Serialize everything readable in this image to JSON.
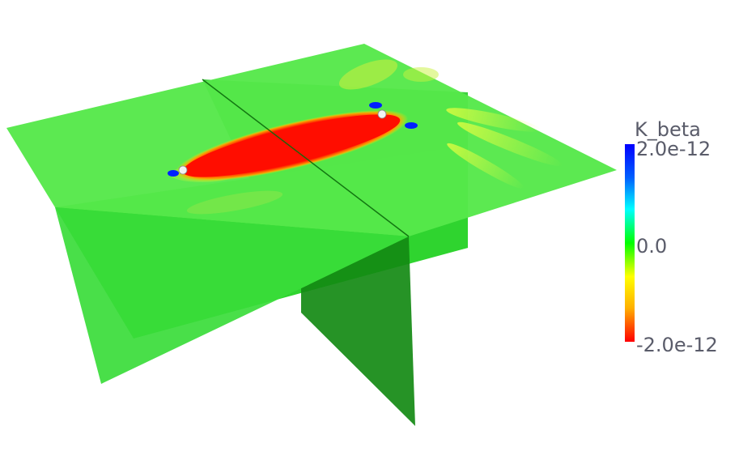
{
  "colorbar": {
    "title": "K_beta",
    "max_label": "2.0e-12",
    "mid_label": "0.0",
    "min_label": "-2.0e-12",
    "range": [
      -2e-12,
      2e-12
    ],
    "colors": [
      "#ff0000",
      "#ffb000",
      "#ffff00",
      "#00ff00",
      "#00ffff",
      "#0060ff",
      "#0000ff"
    ]
  },
  "scene": {
    "background": "#ffffff",
    "slice_color": "#33dd33",
    "anomaly_color": "#ff1100",
    "markers": [
      "source-marker",
      "receiver-marker"
    ]
  }
}
